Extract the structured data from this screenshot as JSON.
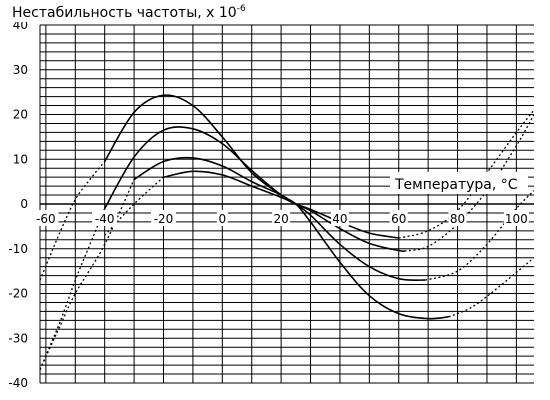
{
  "chart_data": {
    "type": "line",
    "title": "",
    "ylabel": "Нестабильность частоты, х 10",
    "ylabel_exponent": "-6",
    "xlabel": "Температура, °С",
    "xlim": [
      -62,
      106
    ],
    "ylim": [
      -40,
      40
    ],
    "x_ticks": [
      "-60",
      "-40",
      "-20",
      "0",
      "20",
      "40",
      "60",
      "80",
      "100"
    ],
    "y_ticks": [
      "40",
      "30",
      "20",
      "10",
      "0",
      "-10",
      "-20",
      "-30",
      "-40"
    ],
    "grid": "horizontal every 2 units, vertical every 10 units",
    "legend": "none",
    "line_color": "#000000",
    "series": [
      {
        "solid": [
          [
            -40,
            9.5
          ],
          [
            -30,
            20.5
          ],
          [
            -20,
            24.3
          ],
          [
            -10,
            22
          ],
          [
            0,
            15
          ],
          [
            10,
            7
          ],
          [
            20,
            2
          ],
          [
            25,
            0
          ],
          [
            30,
            -4
          ],
          [
            40,
            -13
          ],
          [
            50,
            -20.5
          ],
          [
            60,
            -24.5
          ],
          [
            70,
            -25.6
          ],
          [
            77,
            -25.2
          ]
        ],
        "dotted": [
          [
            -62,
            -17
          ],
          [
            -55,
            -6
          ],
          [
            -50,
            1
          ],
          [
            -45,
            5.5
          ],
          [
            -40,
            9.5
          ],
          [
            77,
            -25.2
          ],
          [
            85,
            -23
          ],
          [
            95,
            -18
          ],
          [
            106,
            -12
          ]
        ]
      },
      {
        "solid": [
          [
            -40,
            -1
          ],
          [
            -30,
            10.5
          ],
          [
            -20,
            16.5
          ],
          [
            -10,
            16.8
          ],
          [
            0,
            13.5
          ],
          [
            10,
            7.5
          ],
          [
            20,
            2
          ],
          [
            25,
            0
          ],
          [
            30,
            -2.5
          ],
          [
            40,
            -9
          ],
          [
            50,
            -14
          ],
          [
            60,
            -16.7
          ],
          [
            69,
            -17
          ]
        ],
        "dotted": [
          [
            -62,
            -37
          ],
          [
            -55,
            -26
          ],
          [
            -50,
            -17
          ],
          [
            -45,
            -9
          ],
          [
            -40,
            -1
          ],
          [
            69,
            -17
          ],
          [
            80,
            -15
          ],
          [
            90,
            -9
          ],
          [
            100,
            -1
          ],
          [
            106,
            3
          ]
        ]
      },
      {
        "solid": [
          [
            -30,
            5.5
          ],
          [
            -20,
            9.5
          ],
          [
            -10,
            10.3
          ],
          [
            0,
            8.5
          ],
          [
            10,
            5
          ],
          [
            20,
            2
          ],
          [
            25,
            0
          ],
          [
            30,
            -1.5
          ],
          [
            40,
            -5.5
          ],
          [
            50,
            -8.8
          ],
          [
            60,
            -10.4
          ],
          [
            62,
            -10.5
          ]
        ],
        "dotted": [
          [
            -62,
            -37
          ],
          [
            -55,
            -27
          ],
          [
            -50,
            -20
          ],
          [
            -40,
            -9
          ],
          [
            -30,
            5.5
          ],
          [
            62,
            -10.5
          ],
          [
            70,
            -9.5
          ],
          [
            80,
            -4.5
          ],
          [
            90,
            3
          ],
          [
            100,
            13
          ],
          [
            106,
            20
          ]
        ]
      },
      {
        "solid": [
          [
            -20,
            6
          ],
          [
            -10,
            7.3
          ],
          [
            0,
            6.5
          ],
          [
            10,
            4
          ],
          [
            20,
            1.5
          ],
          [
            25,
            0
          ],
          [
            30,
            -1.2
          ],
          [
            40,
            -4
          ],
          [
            50,
            -6.5
          ],
          [
            60,
            -7.6
          ]
        ],
        "dotted": [
          [
            -40,
            -7
          ],
          [
            -30,
            0
          ],
          [
            -20,
            6
          ],
          [
            60,
            -7.6
          ],
          [
            70,
            -6
          ],
          [
            80,
            -1.5
          ],
          [
            90,
            7
          ],
          [
            100,
            16
          ],
          [
            106,
            21
          ]
        ]
      }
    ]
  }
}
